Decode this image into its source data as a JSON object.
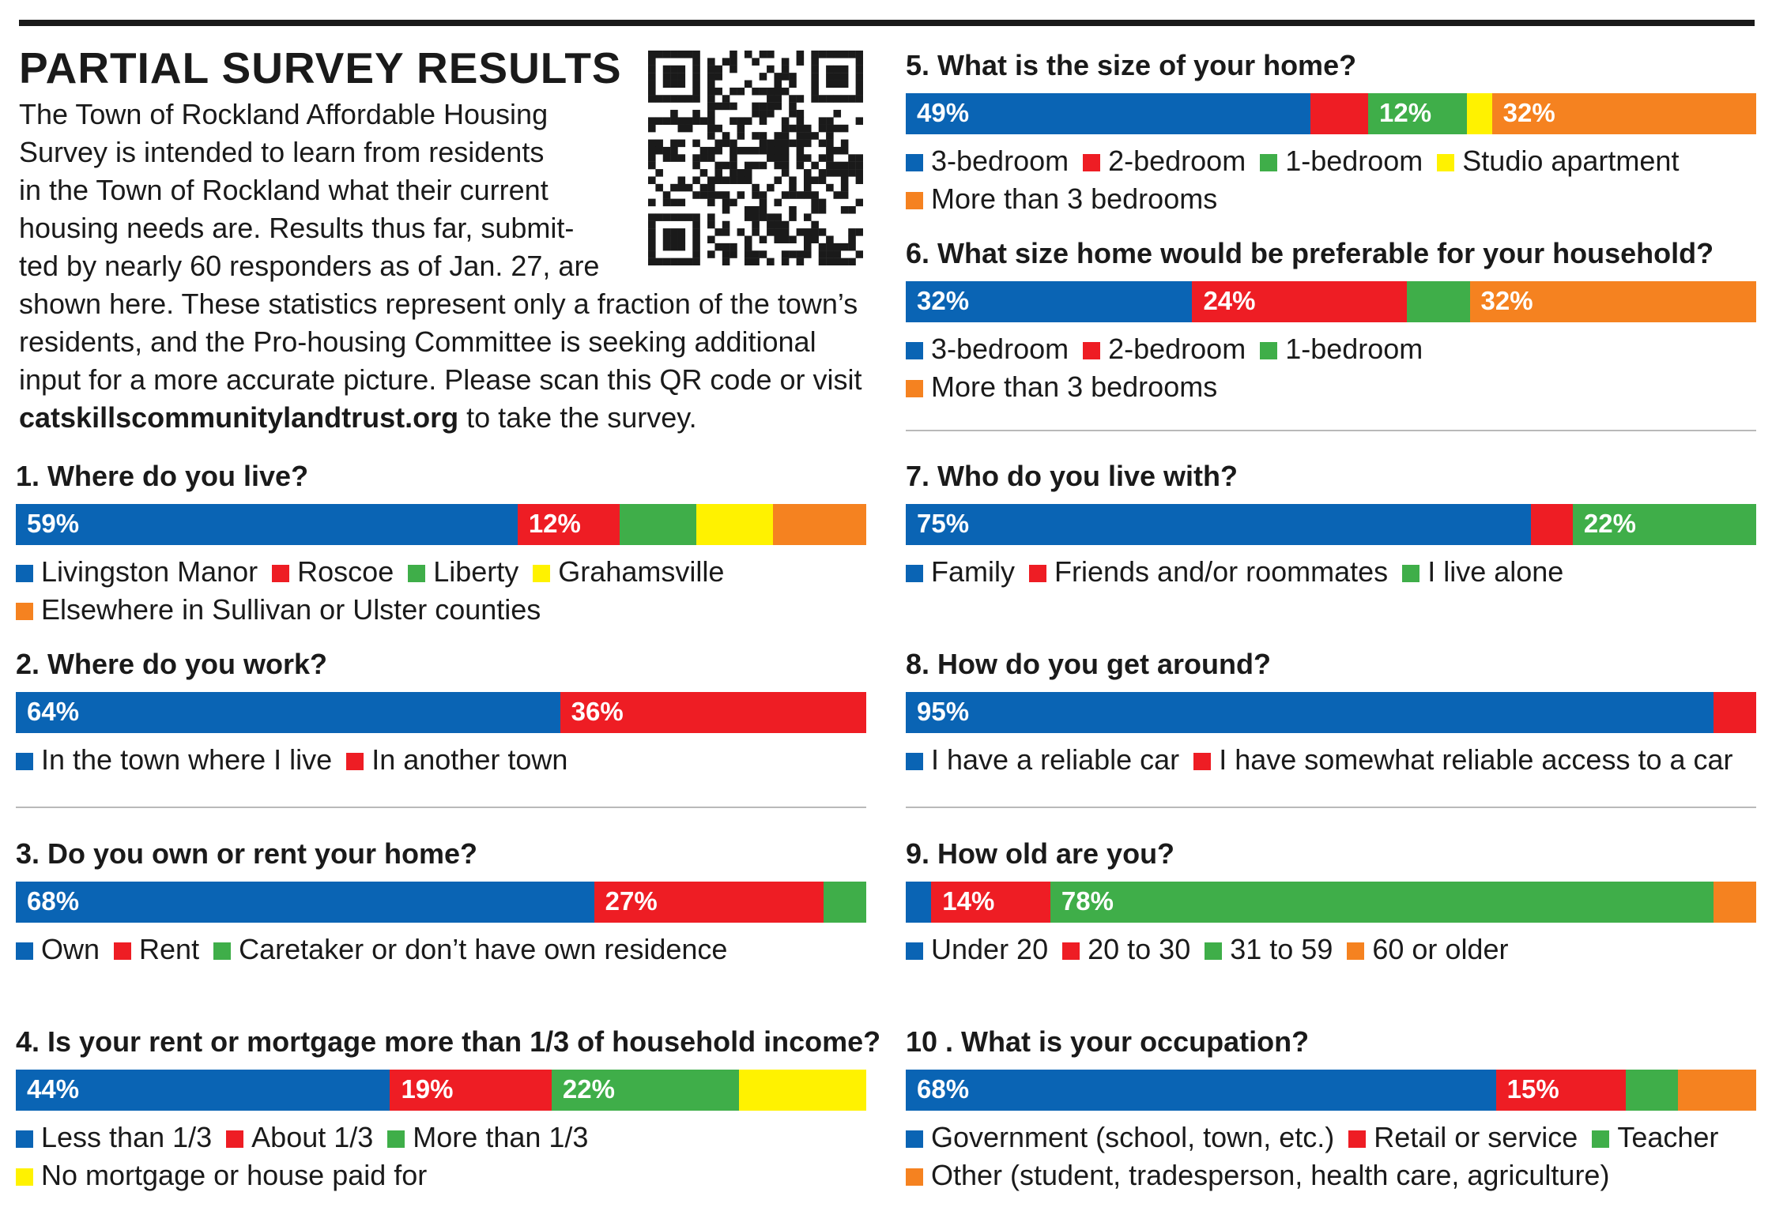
{
  "colors": {
    "blue": "#0a64b4",
    "red": "#ee1d24",
    "green": "#3fae49",
    "yellow": "#fff200",
    "orange": "#f58220"
  },
  "header": {
    "title": "PARTIAL SURVEY RESULTS",
    "intro_lines": [
      "The Town of Rockland Affordable Housing",
      "Survey is intended to learn from residents",
      "in the Town of Rockland what their current",
      "housing needs are. Results thus far, submit-",
      "ted by nearly 60 responders as of Jan. 27, are",
      "shown here. These statistics represent only a fraction of the town’s",
      "residents, and the Pro-housing Committee is seeking additional",
      "input for a more accurate picture. Please scan this QR code or visit"
    ],
    "url": "catskillscommunitylandtrust.org",
    "url_suffix": " to take the survey."
  },
  "chart_data": [
    {
      "type": "bar",
      "stacked": true,
      "title": "1. Where do you live?",
      "categories": [
        "Livingston Manor",
        "Roscoe",
        "Liberty",
        "Grahamsville",
        "Elsewhere in Sullivan or Ulster counties"
      ],
      "values": [
        59,
        12,
        9,
        9,
        11
      ],
      "labels": [
        "59%",
        "12%",
        "",
        "",
        ""
      ],
      "colors": [
        "blue",
        "red",
        "green",
        "yellow",
        "orange"
      ],
      "legend_rows": [
        [
          0,
          1,
          2,
          3
        ],
        [
          4
        ]
      ]
    },
    {
      "type": "bar",
      "stacked": true,
      "title": "2. Where do you work?",
      "categories": [
        "In the town where I live",
        "In another town"
      ],
      "values": [
        64,
        36
      ],
      "labels": [
        "64%",
        "36%"
      ],
      "colors": [
        "blue",
        "red"
      ],
      "legend_rows": [
        [
          0,
          1
        ]
      ]
    },
    {
      "type": "bar",
      "stacked": true,
      "title": "3. Do you own or rent your home?",
      "categories": [
        "Own",
        "Rent",
        "Caretaker or don’t have own residence"
      ],
      "values": [
        68,
        27,
        5
      ],
      "labels": [
        "68%",
        "27%",
        ""
      ],
      "colors": [
        "blue",
        "red",
        "green"
      ],
      "legend_rows": [
        [
          0,
          1,
          2
        ]
      ]
    },
    {
      "type": "bar",
      "stacked": true,
      "title": "4. Is your rent or mortgage more than 1/3 of household income?",
      "categories": [
        "Less than 1/3",
        "About 1/3",
        "More than 1/3",
        "No mortgage or house paid for"
      ],
      "values": [
        44,
        19,
        22,
        15
      ],
      "labels": [
        "44%",
        "19%",
        "22%",
        ""
      ],
      "colors": [
        "blue",
        "red",
        "green",
        "yellow"
      ],
      "legend_rows": [
        [
          0,
          1,
          2
        ],
        [
          3
        ]
      ]
    },
    {
      "type": "bar",
      "stacked": true,
      "title": "5. What is the size of your home?",
      "categories": [
        "3-bedroom",
        "2-bedroom",
        "1-bedroom",
        "Studio apartment",
        "More than 3 bedrooms"
      ],
      "values": [
        49,
        7,
        12,
        3,
        32
      ],
      "labels": [
        "49%",
        "",
        "12%",
        "",
        "32%"
      ],
      "colors": [
        "blue",
        "red",
        "green",
        "yellow",
        "orange"
      ],
      "legend_rows": [
        [
          0,
          1,
          2,
          3
        ],
        [
          4
        ]
      ]
    },
    {
      "type": "bar",
      "stacked": true,
      "title": "6. What size home would be preferable for your household?",
      "categories": [
        "3-bedroom",
        "2-bedroom",
        "1-bedroom",
        "More than 3 bedrooms"
      ],
      "values": [
        32,
        24,
        7,
        32
      ],
      "labels": [
        "32%",
        "24%",
        "",
        "32%"
      ],
      "colors": [
        "blue",
        "red",
        "green",
        "orange"
      ],
      "legend_rows": [
        [
          0,
          1,
          2
        ],
        [
          3
        ]
      ]
    },
    {
      "type": "bar",
      "stacked": true,
      "title": "7. Who do you live with?",
      "categories": [
        "Family",
        "Friends and/or roommates",
        "I live alone"
      ],
      "values": [
        75,
        5,
        22
      ],
      "labels": [
        "75%",
        "",
        "22%"
      ],
      "colors": [
        "blue",
        "red",
        "green"
      ],
      "legend_rows": [
        [
          0,
          1,
          2
        ]
      ]
    },
    {
      "type": "bar",
      "stacked": true,
      "title": "8. How do you get around?",
      "categories": [
        "I have a reliable car",
        "I have somewhat reliable access to a car"
      ],
      "values": [
        95,
        5
      ],
      "labels": [
        "95%",
        ""
      ],
      "colors": [
        "blue",
        "red"
      ],
      "legend_rows": [
        [
          0,
          1
        ]
      ]
    },
    {
      "type": "bar",
      "stacked": true,
      "title": "9. How old are you?",
      "categories": [
        "Under 20",
        "20 to 30",
        "31 to 59",
        "60 or older"
      ],
      "values": [
        3,
        14,
        78,
        5
      ],
      "labels": [
        "",
        "14%",
        "78%",
        ""
      ],
      "colors": [
        "blue",
        "red",
        "green",
        "orange"
      ],
      "legend_rows": [
        [
          0,
          1,
          2,
          3
        ]
      ]
    },
    {
      "type": "bar",
      "stacked": true,
      "title": "10 . What is your occupation?",
      "categories": [
        "Government (school, town, etc.)",
        "Retail or service",
        "Teacher",
        "Other (student, tradesperson, health care, agriculture)"
      ],
      "values": [
        68,
        15,
        6,
        9
      ],
      "labels": [
        "68%",
        "15%",
        "",
        ""
      ],
      "colors": [
        "blue",
        "red",
        "green",
        "orange"
      ],
      "legend_rows": [
        [
          0,
          1,
          2
        ],
        [
          3
        ]
      ]
    }
  ]
}
